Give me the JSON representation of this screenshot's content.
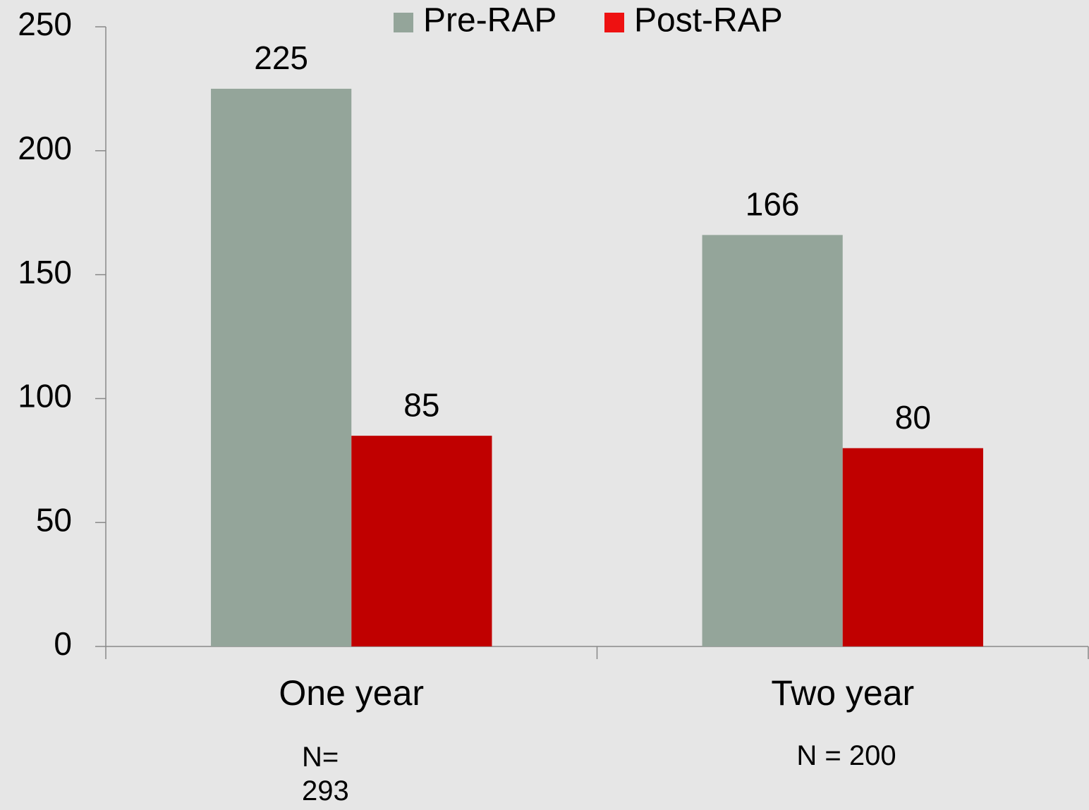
{
  "chart_data": {
    "type": "bar",
    "categories": [
      "One year",
      "Two year"
    ],
    "series": [
      {
        "name": "Pre-RAP",
        "color": "#94a59a",
        "values": [
          225,
          166
        ]
      },
      {
        "name": "Post-RAP",
        "color": "#c00000",
        "values": [
          85,
          80
        ]
      }
    ],
    "ylim": [
      0,
      250
    ],
    "yticks": [
      0,
      50,
      100,
      150,
      200,
      250
    ],
    "grid": false,
    "legend": "top",
    "annotations": [
      "N= 293",
      "N = 200"
    ]
  }
}
